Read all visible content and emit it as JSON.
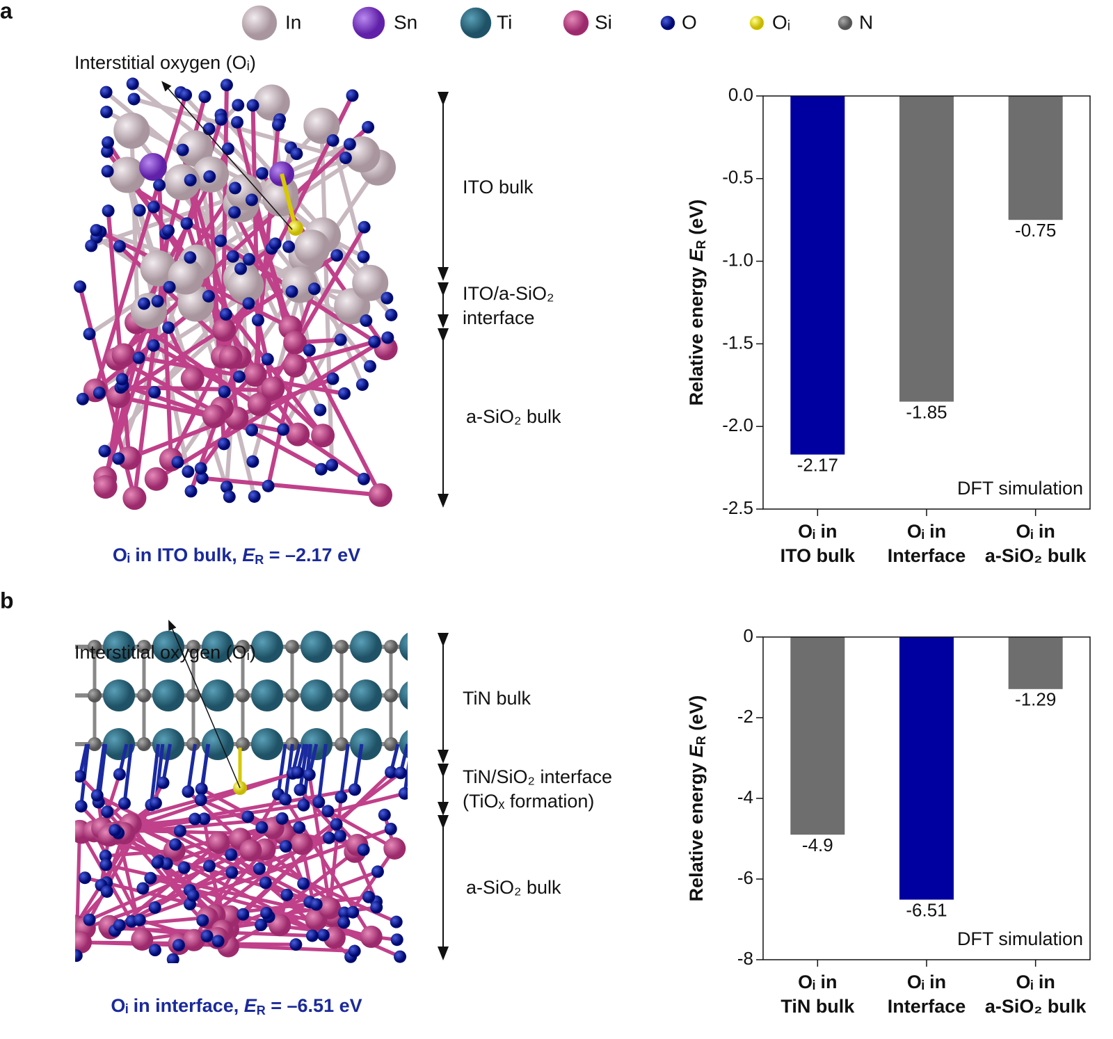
{
  "figure": {
    "legend": [
      {
        "symbol": "In",
        "color": "#c8b8bf"
      },
      {
        "symbol": "Sn",
        "color": "#8a3fd0"
      },
      {
        "symbol": "Ti",
        "color": "#2f6f86"
      },
      {
        "symbol": "Si",
        "color": "#c0408a"
      },
      {
        "symbol": "O",
        "color": "#0a1a9a"
      },
      {
        "symbol": "Oᵢ",
        "color": "#f2e600"
      },
      {
        "symbol": "N",
        "color": "#6a6a6a"
      }
    ],
    "panels": [
      {
        "label": "a",
        "annotation": "Interstitial oxygen (Oᵢ)",
        "regions": [
          "ITO bulk",
          "ITO/a-SiO₂\ninterface",
          "a-SiO₂ bulk"
        ],
        "caption_prefix": "Oᵢ in ITO bulk, ",
        "caption_symbol": "E",
        "caption_sub": "R",
        "caption_suffix": " = –2.17 eV"
      },
      {
        "label": "b",
        "annotation": "Interstitial oxygen (Oᵢ)",
        "regions": [
          "TiN bulk",
          "TiN/SiO₂ interface\n(TiOₓ formation)",
          "a-SiO₂ bulk"
        ],
        "caption_prefix": "Oᵢ in interface, ",
        "caption_symbol": "E",
        "caption_sub": "R",
        "caption_suffix": " = –6.51 eV"
      }
    ]
  },
  "chart_data": [
    {
      "type": "bar",
      "ylabel": "Relative energy ",
      "ylabel_symbol": "E",
      "ylabel_sub": "R",
      "ylabel_unit": " (eV)",
      "categories": [
        "Oᵢ in\nITO bulk",
        "Oᵢ in\nInterface",
        "Oᵢ in\na-SiO₂ bulk"
      ],
      "values": [
        -2.17,
        -1.85,
        -0.75
      ],
      "colors": [
        "#0000a0",
        "#6e6e6e",
        "#6e6e6e"
      ],
      "ylim": [
        -2.5,
        0
      ],
      "yticks": [
        {
          "value": 0,
          "label": "0.0"
        },
        -0.5,
        {
          "value": -1,
          "label": "-1.0"
        },
        -1.5,
        {
          "value": -2,
          "label": "-2.0"
        },
        -2.5
      ],
      "annotation": "DFT simulation"
    },
    {
      "type": "bar",
      "ylabel": "Relative energy ",
      "ylabel_symbol": "E",
      "ylabel_sub": "R",
      "ylabel_unit": " (eV)",
      "categories": [
        "Oᵢ in\nTiN bulk",
        "Oᵢ in\nInterface",
        "Oᵢ in\na-SiO₂ bulk"
      ],
      "values": [
        -4.9,
        -6.51,
        -1.29
      ],
      "colors": [
        "#6e6e6e",
        "#0000a0",
        "#6e6e6e"
      ],
      "ylim": [
        -8,
        0
      ],
      "yticks": [
        0,
        -2,
        -4,
        -6,
        -8
      ],
      "annotation": "DFT simulation"
    }
  ]
}
